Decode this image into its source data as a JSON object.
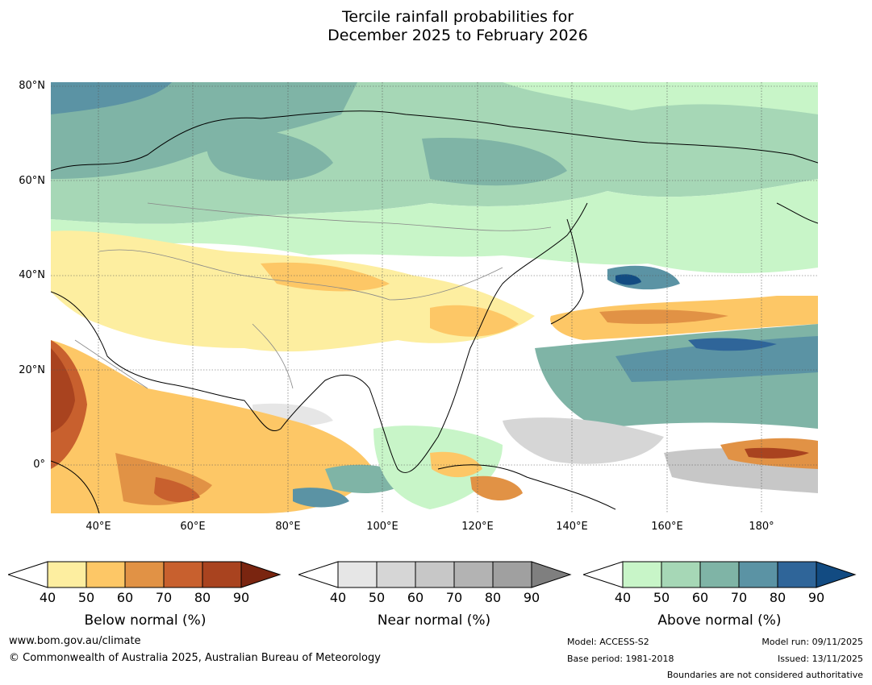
{
  "title_line1": "Tercile rainfall probabilities for",
  "title_line2": "December 2025 to February 2026",
  "lat_labels": [
    "80°N",
    "60°N",
    "40°N",
    "20°N",
    "0°"
  ],
  "lon_labels": [
    "40°E",
    "60°E",
    "80°E",
    "100°E",
    "120°E",
    "140°E",
    "160°E",
    "180°"
  ],
  "legends": {
    "below": {
      "label": "Below normal (%)",
      "ticks": [
        "40",
        "50",
        "60",
        "70",
        "80",
        "90"
      ],
      "colors": [
        "#fdeea0",
        "#fdc766",
        "#e19245",
        "#c8602e",
        "#a9431f",
        "#7a2510"
      ]
    },
    "near": {
      "label": "Near normal (%)",
      "ticks": [
        "40",
        "50",
        "60",
        "70",
        "80",
        "90"
      ],
      "colors": [
        "#e6e6e6",
        "#d6d6d6",
        "#c7c7c7",
        "#b3b3b3",
        "#a0a0a0",
        "#7f7f7f"
      ]
    },
    "above": {
      "label": "Above normal (%)",
      "ticks": [
        "40",
        "50",
        "60",
        "70",
        "80",
        "90"
      ],
      "colors": [
        "#c8f5c8",
        "#a6d7b6",
        "#7fb4a6",
        "#5b93a4",
        "#2f6599",
        "#124b82"
      ]
    }
  },
  "footer": {
    "website": "www.bom.gov.au/climate",
    "copyright": "© Commonwealth of Australia 2025, Australian Bureau of Meteorology",
    "model": "Model: ACCESS-S2",
    "base_period": "Base period: 1981-2018",
    "model_run": "Model run: 09/11/2025",
    "issued": "Issued: 13/11/2025",
    "disclaimer": "Boundaries are not considered authoritative"
  }
}
